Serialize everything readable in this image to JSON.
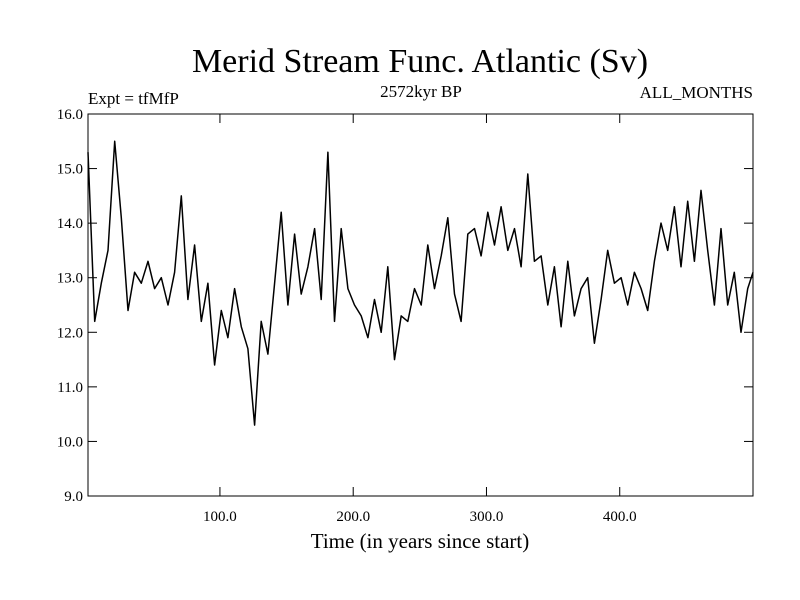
{
  "chart_data": {
    "type": "line",
    "title": "Merid Stream Func. Atlantic (Sv)",
    "subtitle_left": "Expt = tfMfP",
    "subtitle_center": "2572kyr BP",
    "subtitle_right": "ALL_MONTHS",
    "xlabel": "Time (in years since start)",
    "ylabel": "",
    "xlim": [
      1,
      500
    ],
    "ylim": [
      9.0,
      16.0
    ],
    "x_ticks": [
      100,
      200,
      300,
      400
    ],
    "x_tick_labels": [
      "100.0",
      "200.0",
      "300.0",
      "400.0"
    ],
    "y_ticks": [
      9,
      10,
      11,
      12,
      13,
      14,
      15,
      16
    ],
    "y_tick_labels": [
      "9.0",
      "10.0",
      "11.0",
      "12.0",
      "13.0",
      "14.0",
      "15.0",
      "16.0"
    ],
    "grid": false,
    "series": [
      {
        "name": "Merid Stream Func. Atlantic",
        "color": "#000000",
        "x": [
          1,
          6,
          11,
          16,
          21,
          26,
          31,
          36,
          41,
          46,
          51,
          56,
          61,
          66,
          71,
          76,
          81,
          86,
          91,
          96,
          101,
          106,
          111,
          116,
          121,
          126,
          131,
          136,
          141,
          146,
          151,
          156,
          161,
          166,
          171,
          176,
          181,
          186,
          191,
          196,
          201,
          206,
          211,
          216,
          221,
          226,
          231,
          236,
          241,
          246,
          251,
          256,
          261,
          266,
          271,
          276,
          281,
          286,
          291,
          296,
          301,
          306,
          311,
          316,
          321,
          326,
          331,
          336,
          341,
          346,
          351,
          356,
          361,
          366,
          371,
          376,
          381,
          386,
          391,
          396,
          401,
          406,
          411,
          416,
          421,
          426,
          431,
          436,
          441,
          446,
          451,
          456,
          461,
          466,
          471,
          476,
          481,
          486,
          491,
          496,
          500
        ],
        "y": [
          15.3,
          12.2,
          12.9,
          13.5,
          15.5,
          14.1,
          12.4,
          13.1,
          12.9,
          13.3,
          12.8,
          13.0,
          12.5,
          13.1,
          14.5,
          12.6,
          13.6,
          12.2,
          12.9,
          11.4,
          12.4,
          11.9,
          12.8,
          12.1,
          11.7,
          10.3,
          12.2,
          11.6,
          12.9,
          14.2,
          12.5,
          13.8,
          12.7,
          13.2,
          13.9,
          12.6,
          15.3,
          12.2,
          13.9,
          12.8,
          12.5,
          12.3,
          11.9,
          12.6,
          12.0,
          13.2,
          11.5,
          12.3,
          12.2,
          12.8,
          12.5,
          13.6,
          12.8,
          13.4,
          14.1,
          12.7,
          12.2,
          13.8,
          13.9,
          13.4,
          14.2,
          13.6,
          14.3,
          13.5,
          13.9,
          13.2,
          14.9,
          13.3,
          13.4,
          12.5,
          13.2,
          12.1,
          13.3,
          12.3,
          12.8,
          13.0,
          11.8,
          12.6,
          13.5,
          12.9,
          13.0,
          12.5,
          13.1,
          12.8,
          12.4,
          13.3,
          14.0,
          13.5,
          14.3,
          13.2,
          14.4,
          13.3,
          14.6,
          13.5,
          12.5,
          13.9,
          12.5,
          13.1,
          12.0,
          12.8,
          13.1
        ]
      }
    ]
  }
}
